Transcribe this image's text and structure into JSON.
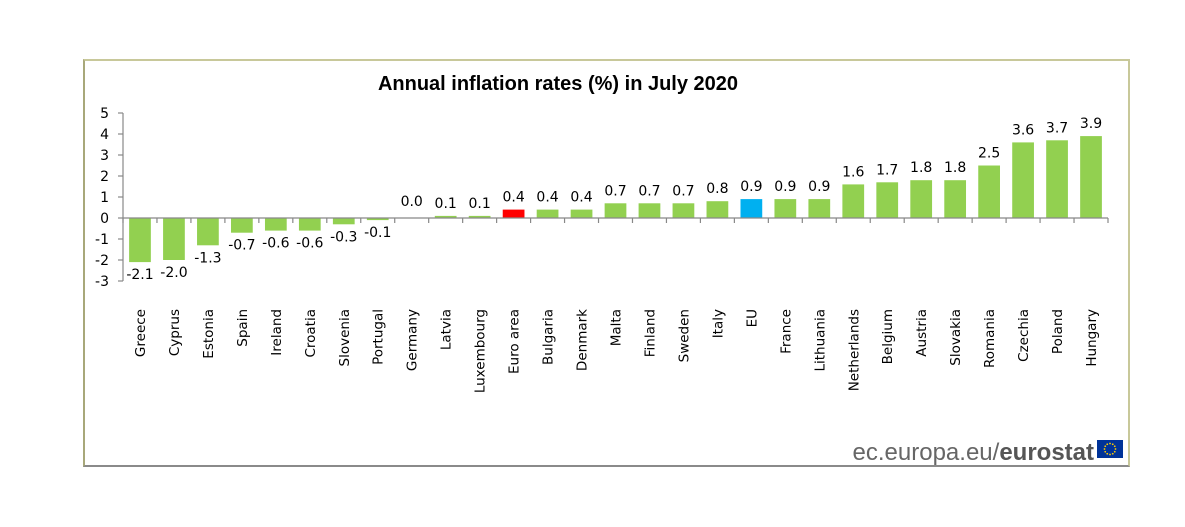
{
  "chart_data": {
    "type": "bar",
    "title": "Annual inflation rates (%)  in July 2020",
    "xlabel": "",
    "ylabel": "",
    "ylim": [
      -3,
      5
    ],
    "yticks": [
      5,
      4,
      3,
      2,
      1,
      0,
      -1,
      -2,
      -3
    ],
    "grid": false,
    "legend": "none",
    "categories": [
      "Greece",
      "Cyprus",
      "Estonia",
      "Spain",
      "Ireland",
      "Croatia",
      "Slovenia",
      "Portugal",
      "Germany",
      "Latvia",
      "Luxembourg",
      "Euro area",
      "Bulgaria",
      "Denmark",
      "Malta",
      "Finland",
      "Sweden",
      "Italy",
      "EU",
      "France",
      "Lithuania",
      "Netherlands",
      "Belgium",
      "Austria",
      "Slovakia",
      "Romania",
      "Czechia",
      "Poland",
      "Hungary"
    ],
    "values": [
      -2.1,
      -2.0,
      -1.3,
      -0.7,
      -0.6,
      -0.6,
      -0.3,
      -0.1,
      0.0,
      0.1,
      0.1,
      0.4,
      0.4,
      0.4,
      0.7,
      0.7,
      0.7,
      0.8,
      0.9,
      0.9,
      0.9,
      1.6,
      1.7,
      1.8,
      1.8,
      2.5,
      3.6,
      3.7,
      3.9
    ],
    "data_labels": [
      "-2.1",
      "-2.0",
      "-1.3",
      "-0.7",
      "-0.6",
      "-0.6",
      "-0.3",
      "-0.1",
      "0.0",
      "0.1",
      "0.1",
      "0.4",
      "0.4",
      "0.4",
      "0.7",
      "0.7",
      "0.7",
      "0.8",
      "0.9",
      "0.9",
      "0.9",
      "1.6",
      "1.7",
      "1.8",
      "1.8",
      "2.5",
      "3.6",
      "3.7",
      "3.9"
    ],
    "colors": {
      "default": "#92d050",
      "highlight": {
        "Euro area": "#ff0000",
        "EU": "#00b0f0"
      }
    }
  },
  "footer": {
    "source_prefix": "ec.europa.eu/",
    "source_brand": "eurostat",
    "logo": "eu-flag-icon"
  },
  "colors": {
    "frame_border": "#a8a87a",
    "axis": "#888888",
    "flag_blue": "#003399",
    "flag_star": "#ffcc00"
  }
}
